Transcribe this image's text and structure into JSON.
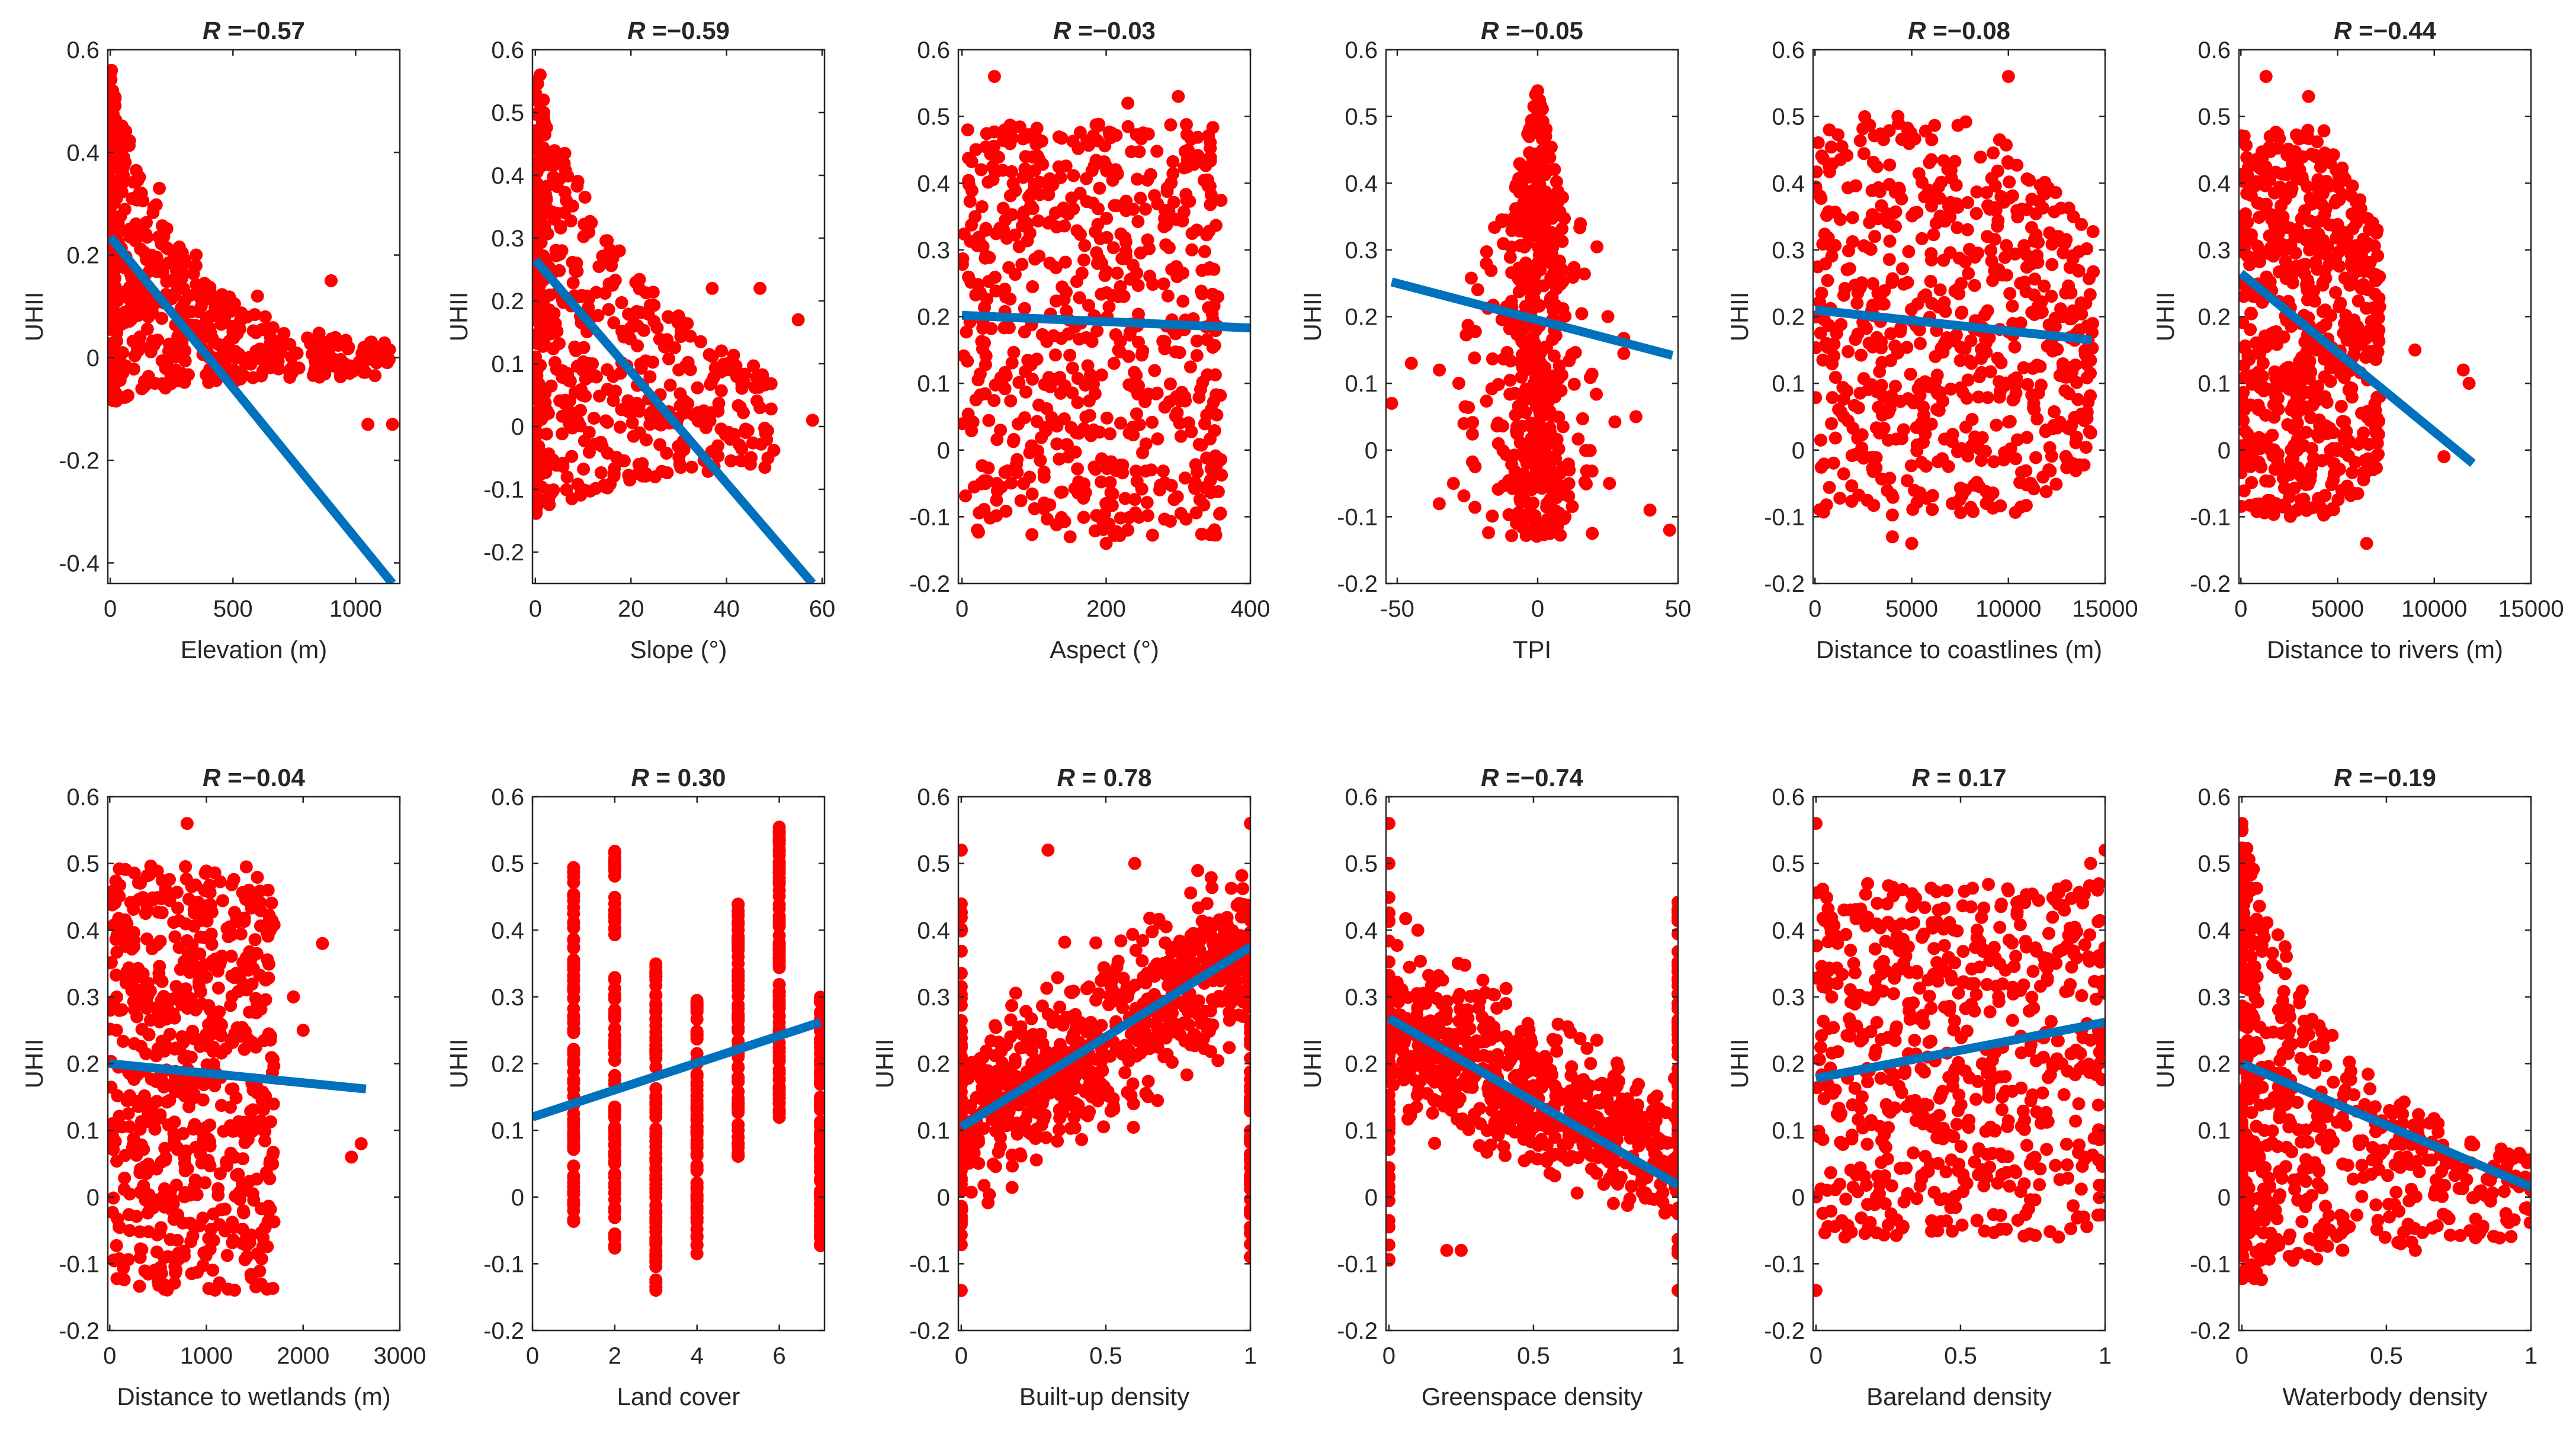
{
  "figure": {
    "panel_count": 12,
    "colors": {
      "points": "#ff0000",
      "fit_line": "#0072bd",
      "axes": "#262626",
      "background": "#ffffff"
    }
  },
  "chart_data": [
    {
      "type": "scatter",
      "title": "R =−0.57",
      "r_prefix": "R",
      "r_text": " =−0.57",
      "xlabel": "Elevation (m)",
      "ylabel": "UHII",
      "xlim": [
        -10,
        1180
      ],
      "ylim": [
        -0.44,
        0.6
      ],
      "xticks": [
        0,
        500,
        1000
      ],
      "xtick_labels": [
        "0",
        "500",
        "1000"
      ],
      "yticks": [
        -0.4,
        -0.2,
        0,
        0.2,
        0.4,
        0.6
      ],
      "ytick_labels": [
        "-0.4",
        "-0.2",
        "0",
        "0.2",
        "0.4",
        "0.6"
      ],
      "fit": {
        "x": [
          0,
          1150
        ],
        "y": [
          0.235,
          -0.44
        ]
      },
      "cloud": {
        "kind": "decay",
        "x": [
          0,
          1150
        ],
        "ymin": -0.09,
        "ymax": 0.56,
        "k": 4,
        "floor": 0.02
      },
      "points": [
        [
          5,
          0.56
        ],
        [
          10,
          0.52
        ],
        [
          200,
          0.33
        ],
        [
          350,
          0.2
        ],
        [
          500,
          0.05
        ],
        [
          1050,
          -0.13
        ],
        [
          1150,
          -0.13
        ],
        [
          900,
          0.15
        ],
        [
          600,
          0.12
        ]
      ]
    },
    {
      "type": "scatter",
      "title": "R =−0.59",
      "r_prefix": "R",
      "r_text": " =−0.59",
      "xlabel": "Slope (°)",
      "ylabel": "UHII",
      "xlim": [
        -0.6,
        60.5
      ],
      "ylim": [
        -0.25,
        0.6
      ],
      "xticks": [
        0,
        20,
        40,
        60
      ],
      "xtick_labels": [
        "0",
        "20",
        "40",
        "60"
      ],
      "yticks": [
        -0.2,
        -0.1,
        0,
        0.1,
        0.2,
        0.3,
        0.4,
        0.5,
        0.6
      ],
      "ytick_labels": [
        "-0.2",
        "-0.1",
        "0",
        "0.1",
        "0.2",
        "0.3",
        "0.4",
        "0.5",
        "0.6"
      ],
      "fit": {
        "x": [
          0,
          58
        ],
        "y": [
          0.265,
          -0.25
        ]
      },
      "cloud": {
        "kind": "decay",
        "x": [
          0,
          50
        ],
        "ymin": -0.14,
        "ymax": 0.56,
        "k": 2.2,
        "floor": 0.04
      },
      "points": [
        [
          1,
          0.56
        ],
        [
          47,
          0.22
        ],
        [
          55,
          0.17
        ],
        [
          58,
          0.01
        ],
        [
          47,
          0.03
        ],
        [
          45,
          -0.06
        ],
        [
          37,
          0.22
        ]
      ]
    },
    {
      "type": "scatter",
      "title": "R =−0.03",
      "r_prefix": "R",
      "r_text": " =−0.03",
      "xlabel": "Aspect (°)",
      "ylabel": "",
      "xlim": [
        -5,
        400
      ],
      "ylim": [
        -0.2,
        0.6
      ],
      "xticks": [
        0,
        200,
        400
      ],
      "xtick_labels": [
        "0",
        "200",
        "400"
      ],
      "yticks": [
        -0.2,
        -0.1,
        0,
        0.1,
        0.2,
        0.3,
        0.4,
        0.5,
        0.6
      ],
      "ytick_labels": [
        "-0.2",
        "-0.1",
        "0",
        "0.1",
        "0.2",
        "0.3",
        "0.4",
        "0.5",
        "0.6"
      ],
      "fit": {
        "x": [
          0,
          400
        ],
        "y": [
          0.202,
          0.183
        ]
      },
      "cloud": {
        "kind": "band",
        "x": [
          0,
          360
        ],
        "ymin": -0.13,
        "ymax": 0.49
      },
      "points": [
        [
          45,
          0.56
        ],
        [
          300,
          0.53
        ],
        [
          230,
          0.52
        ],
        [
          150,
          -0.13
        ],
        [
          200,
          -0.14
        ],
        [
          8,
          0.48
        ]
      ]
    },
    {
      "type": "scatter",
      "title": "R =−0.05",
      "r_prefix": "R",
      "r_text": " =−0.05",
      "xlabel": "TPI",
      "ylabel": "UHII",
      "xlim": [
        -54,
        50
      ],
      "ylim": [
        -0.2,
        0.6
      ],
      "xticks": [
        -50,
        0,
        50
      ],
      "xtick_labels": [
        "-50",
        "0",
        "50"
      ],
      "yticks": [
        -0.2,
        -0.1,
        0,
        0.1,
        0.2,
        0.3,
        0.4,
        0.5,
        0.6
      ],
      "ytick_labels": [
        "-0.2",
        "-0.1",
        "0",
        "0.1",
        "0.2",
        "0.3",
        "0.4",
        "0.5",
        "0.6"
      ],
      "fit": {
        "x": [
          -52,
          48
        ],
        "y": [
          0.252,
          0.142
        ]
      },
      "cloud": {
        "kind": "spike",
        "cx": 0,
        "spread": 14,
        "ymin": -0.13,
        "ymax": 0.55
      },
      "points": [
        [
          -52,
          0.07
        ],
        [
          -45,
          0.13
        ],
        [
          -30,
          -0.05
        ],
        [
          40,
          -0.09
        ],
        [
          47,
          -0.12
        ],
        [
          35,
          0.05
        ],
        [
          25,
          0.2
        ],
        [
          -35,
          0.12
        ]
      ]
    },
    {
      "type": "scatter",
      "title": "R =−0.08",
      "r_prefix": "R",
      "r_text": " =−0.08",
      "xlabel": "Distance to coastlines (m)",
      "ylabel": "UHII",
      "xlim": [
        -100,
        15000
      ],
      "ylim": [
        -0.2,
        0.6
      ],
      "xticks": [
        0,
        5000,
        10000,
        15000
      ],
      "xtick_labels": [
        "0",
        "5000",
        "10000",
        "15000"
      ],
      "yticks": [
        -0.2,
        -0.1,
        0,
        0.1,
        0.2,
        0.3,
        0.4,
        0.5,
        0.6
      ],
      "ytick_labels": [
        "-0.2",
        "-0.1",
        "0",
        "0.1",
        "0.2",
        "0.3",
        "0.4",
        "0.5",
        "0.6"
      ],
      "fit": {
        "x": [
          0,
          14300
        ],
        "y": [
          0.21,
          0.165
        ]
      },
      "cloud": {
        "kind": "band",
        "x": [
          0,
          14400
        ],
        "ymin": -0.1,
        "ymax": 0.5,
        "taper": true
      },
      "points": [
        [
          10000,
          0.56
        ],
        [
          5000,
          -0.14
        ],
        [
          4000,
          -0.13
        ],
        [
          9000,
          -0.07
        ],
        [
          14000,
          0.22
        ]
      ]
    },
    {
      "type": "scatter",
      "title": "R =−0.44",
      "r_prefix": "R",
      "r_text": " =−0.44",
      "xlabel": "Distance to rivers (m)",
      "ylabel": "UHII",
      "xlim": [
        -100,
        15000
      ],
      "ylim": [
        -0.2,
        0.6
      ],
      "xticks": [
        0,
        5000,
        10000,
        15000
      ],
      "xtick_labels": [
        "0",
        "5000",
        "10000",
        "15000"
      ],
      "yticks": [
        -0.2,
        -0.1,
        0,
        0.1,
        0.2,
        0.3,
        0.4,
        0.5,
        0.6
      ],
      "ytick_labels": [
        "-0.2",
        "-0.1",
        "0",
        "0.1",
        "0.2",
        "0.3",
        "0.4",
        "0.5",
        "0.6"
      ],
      "fit": {
        "x": [
          0,
          12000
        ],
        "y": [
          0.265,
          -0.02
        ]
      },
      "cloud": {
        "kind": "band",
        "x": [
          0,
          7200
        ],
        "ymin": -0.1,
        "ymax": 0.48,
        "taper": true
      },
      "points": [
        [
          1300,
          0.56
        ],
        [
          3500,
          0.53
        ],
        [
          11500,
          0.12
        ],
        [
          11800,
          0.1
        ],
        [
          10500,
          -0.01
        ],
        [
          6500,
          -0.14
        ],
        [
          9000,
          0.15
        ]
      ]
    },
    {
      "type": "scatter",
      "title": "R =−0.04",
      "r_prefix": "R",
      "r_text": " =−0.04",
      "xlabel": "Distance to wetlands (m)",
      "ylabel": "UHII",
      "xlim": [
        -20,
        3000
      ],
      "ylim": [
        -0.2,
        0.6
      ],
      "xticks": [
        0,
        1000,
        2000,
        3000
      ],
      "xtick_labels": [
        "0",
        "1000",
        "2000",
        "3000"
      ],
      "yticks": [
        -0.2,
        -0.1,
        0,
        0.1,
        0.2,
        0.3,
        0.4,
        0.5,
        0.6
      ],
      "ytick_labels": [
        "-0.2",
        "-0.1",
        "0",
        "0.1",
        "0.2",
        "0.3",
        "0.4",
        "0.5",
        "0.6"
      ],
      "fit": {
        "x": [
          0,
          2650
        ],
        "y": [
          0.2,
          0.162
        ]
      },
      "cloud": {
        "kind": "band",
        "x": [
          0,
          1700
        ],
        "ymin": -0.14,
        "ymax": 0.5
      },
      "points": [
        [
          800,
          0.56
        ],
        [
          2600,
          0.08
        ],
        [
          2500,
          0.06
        ],
        [
          2200,
          0.38
        ],
        [
          2000,
          0.25
        ],
        [
          1900,
          0.3
        ]
      ]
    },
    {
      "type": "scatter",
      "title": "R = 0.30",
      "r_prefix": "R",
      "r_text": " = 0.30",
      "xlabel": "Land cover",
      "ylabel": "UHII",
      "xlim": [
        0,
        7.1
      ],
      "ylim": [
        -0.2,
        0.6
      ],
      "xticks": [
        0,
        2,
        4,
        6
      ],
      "xtick_labels": [
        "0",
        "2",
        "4",
        "6"
      ],
      "yticks": [
        -0.2,
        -0.1,
        0,
        0.1,
        0.2,
        0.3,
        0.4,
        0.5,
        0.6
      ],
      "ytick_labels": [
        "-0.2",
        "-0.1",
        "0",
        "0.1",
        "0.2",
        "0.3",
        "0.4",
        "0.5",
        "0.6"
      ],
      "fit": {
        "x": [
          0,
          7
        ],
        "y": [
          0.12,
          0.262
        ]
      },
      "cloud": {
        "kind": "columns",
        "cols": [
          [
            1,
            -0.05,
            0.53
          ],
          [
            2,
            -0.08,
            0.53
          ],
          [
            3,
            -0.14,
            0.35
          ],
          [
            4,
            -0.09,
            0.3
          ],
          [
            5,
            0.06,
            0.45
          ],
          [
            6,
            0.1,
            0.56
          ],
          [
            7,
            -0.08,
            0.32
          ]
        ]
      },
      "points": []
    },
    {
      "type": "scatter",
      "title": "R = 0.78",
      "r_prefix": "R",
      "r_text": " = 0.78",
      "xlabel": "Built-up density",
      "ylabel": "UHII",
      "xlim": [
        -0.01,
        1
      ],
      "ylim": [
        -0.2,
        0.6
      ],
      "xticks": [
        0,
        0.5,
        1
      ],
      "xtick_labels": [
        "0",
        "0.5",
        "1"
      ],
      "yticks": [
        -0.2,
        -0.1,
        0,
        0.1,
        0.2,
        0.3,
        0.4,
        0.5,
        0.6
      ],
      "ytick_labels": [
        "-0.2",
        "-0.1",
        "0",
        "0.1",
        "0.2",
        "0.3",
        "0.4",
        "0.5",
        "0.6"
      ],
      "fit": {
        "x": [
          0,
          1
        ],
        "y": [
          0.105,
          0.375
        ]
      },
      "cloud": {
        "kind": "trend",
        "x": [
          0,
          1
        ],
        "y0": 0.105,
        "y1": 0.375,
        "spread": 0.12
      },
      "points": [
        [
          0,
          -0.14
        ],
        [
          0,
          0.52
        ],
        [
          1,
          0.56
        ],
        [
          0.3,
          0.52
        ],
        [
          0.6,
          0.5
        ],
        [
          0.85,
          0.44
        ]
      ]
    },
    {
      "type": "scatter",
      "title": "R =−0.74",
      "r_prefix": "R",
      "r_text": " =−0.74",
      "xlabel": "Greenspace density",
      "ylabel": "UHII",
      "xlim": [
        -0.01,
        1
      ],
      "ylim": [
        -0.2,
        0.6
      ],
      "xticks": [
        0,
        0.5,
        1
      ],
      "xtick_labels": [
        "0",
        "0.5",
        "1"
      ],
      "yticks": [
        -0.2,
        -0.1,
        0,
        0.1,
        0.2,
        0.3,
        0.4,
        0.5,
        0.6
      ],
      "ytick_labels": [
        "-0.2",
        "-0.1",
        "0",
        "0.1",
        "0.2",
        "0.3",
        "0.4",
        "0.5",
        "0.6"
      ],
      "fit": {
        "x": [
          0,
          1
        ],
        "y": [
          0.268,
          0.018
        ]
      },
      "cloud": {
        "kind": "trend",
        "x": [
          0,
          1
        ],
        "y0": 0.268,
        "y1": 0.05,
        "spread": 0.11
      },
      "points": [
        [
          0,
          0.56
        ],
        [
          0,
          0.5
        ],
        [
          0.2,
          -0.08
        ],
        [
          0.25,
          -0.08
        ],
        [
          1,
          -0.14
        ],
        [
          1,
          0.25
        ],
        [
          0.1,
          0.4
        ]
      ]
    },
    {
      "type": "scatter",
      "title": "R = 0.17",
      "r_prefix": "R",
      "r_text": " = 0.17",
      "xlabel": "Bareland density",
      "ylabel": "UHII",
      "xlim": [
        -0.01,
        1
      ],
      "ylim": [
        -0.2,
        0.6
      ],
      "xticks": [
        0,
        0.5,
        1
      ],
      "xtick_labels": [
        "0",
        "0.5",
        "1"
      ],
      "yticks": [
        -0.2,
        -0.1,
        0,
        0.1,
        0.2,
        0.3,
        0.4,
        0.5,
        0.6
      ],
      "ytick_labels": [
        "-0.2",
        "-0.1",
        "0",
        "0.1",
        "0.2",
        "0.3",
        "0.4",
        "0.5",
        "0.6"
      ],
      "fit": {
        "x": [
          0,
          1
        ],
        "y": [
          0.178,
          0.262
        ]
      },
      "cloud": {
        "kind": "band",
        "x": [
          0,
          1
        ],
        "ymin": -0.06,
        "ymax": 0.47
      },
      "points": [
        [
          0,
          0.56
        ],
        [
          0,
          -0.14
        ],
        [
          1,
          0.52
        ],
        [
          0.95,
          0.5
        ],
        [
          0.1,
          -0.06
        ]
      ]
    },
    {
      "type": "scatter",
      "title": "R =−0.19",
      "r_prefix": "R",
      "r_text": " =−0.19",
      "xlabel": "Waterbody density",
      "ylabel": "UHII",
      "xlim": [
        -0.01,
        1
      ],
      "ylim": [
        -0.2,
        0.6
      ],
      "xticks": [
        0,
        0.5,
        1
      ],
      "xtick_labels": [
        "0",
        "0.5",
        "1"
      ],
      "yticks": [
        -0.2,
        -0.1,
        0,
        0.1,
        0.2,
        0.3,
        0.4,
        0.5,
        0.6
      ],
      "ytick_labels": [
        "-0.2",
        "-0.1",
        "0",
        "0.1",
        "0.2",
        "0.3",
        "0.4",
        "0.5",
        "0.6"
      ],
      "fit": {
        "x": [
          0,
          1
        ],
        "y": [
          0.2,
          0.015
        ]
      },
      "cloud": {
        "kind": "decay",
        "x": [
          0,
          1
        ],
        "ymin": -0.14,
        "ymax": 0.56,
        "k": 3,
        "floor": 0.05,
        "trendline": true
      },
      "points": [
        [
          0,
          0.56
        ],
        [
          0.55,
          -0.07
        ],
        [
          0.6,
          -0.08
        ],
        [
          0.35,
          -0.03
        ],
        [
          0.98,
          0.03
        ],
        [
          1,
          0.01
        ]
      ]
    }
  ]
}
